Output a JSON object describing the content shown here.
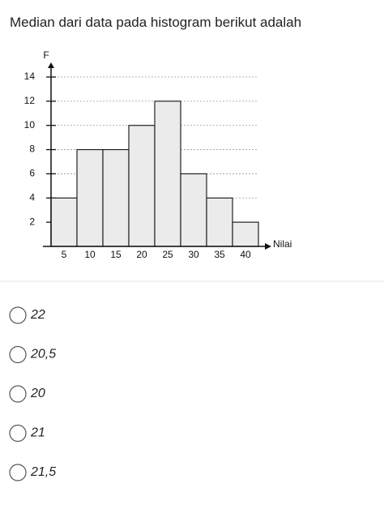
{
  "question": "Median dari data pada histogram berikut adalah",
  "chart_data": {
    "type": "bar",
    "y_label": "F",
    "x_label": "Nilai",
    "categories": [
      "5",
      "10",
      "15",
      "20",
      "25",
      "30",
      "35",
      "40"
    ],
    "values": [
      4,
      8,
      8,
      10,
      12,
      6,
      4,
      2
    ],
    "color": "#ebebeb",
    "ylim": [
      0,
      14
    ],
    "yticks": [
      2,
      4,
      6,
      8,
      10,
      12,
      14
    ],
    "grid": true
  },
  "options": [
    "22",
    "20,5",
    "20",
    "21",
    "21,5"
  ]
}
